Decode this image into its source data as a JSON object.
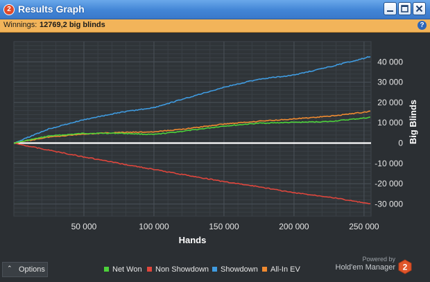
{
  "window": {
    "title": "Results Graph",
    "app_icon_text": "2",
    "buttons": [
      "minimize",
      "maximize",
      "close"
    ]
  },
  "winnings": {
    "label": "Winnings:",
    "value": "12769,2 big blinds",
    "help_icon": "question-icon"
  },
  "footer": {
    "options_label": "Options",
    "options_icon": "chevron-up-icon",
    "powered_by": "Powered by",
    "brand": "Hold'em Manager",
    "brand_logo_text": "2"
  },
  "colors": {
    "background": "#2b2f33",
    "net_won": "#4cd13a",
    "non_showdown": "#e0463c",
    "showdown": "#3f9be0",
    "all_in_ev": "#f08a30",
    "title_bar": "#4285d6",
    "winnings_bar": "#f2b45a"
  },
  "chart_data": {
    "type": "line",
    "title": "",
    "xlabel": "Hands",
    "ylabel": "Big Blinds",
    "xlim": [
      0,
      255000
    ],
    "ylim": [
      -36000,
      50000
    ],
    "x_ticks": [
      50000,
      100000,
      150000,
      200000,
      250000
    ],
    "x_tick_labels": [
      "50 000",
      "100 000",
      "150 000",
      "200 000",
      "250 000"
    ],
    "y_ticks": [
      40000,
      30000,
      20000,
      10000,
      0,
      -10000,
      -20000,
      -30000
    ],
    "y_tick_labels": [
      "40 000",
      "30 000",
      "20 000",
      "10 000",
      "0",
      "-10 000",
      "-20 000",
      "-30 000"
    ],
    "y_axis_position": "right",
    "grid": true,
    "legend": "bottom",
    "x": [
      0,
      25000,
      50000,
      75000,
      100000,
      125000,
      150000,
      175000,
      200000,
      225000,
      250000,
      255000
    ],
    "series": [
      {
        "name": "Net Won",
        "color": "#4cd13a",
        "values": [
          0,
          3500,
          4800,
          4900,
          4200,
          6200,
          8400,
          9800,
          10200,
          10600,
          12300,
          12769
        ]
      },
      {
        "name": "Non Showdown",
        "color": "#e0463c",
        "values": [
          0,
          -3500,
          -6800,
          -10000,
          -13000,
          -16000,
          -19000,
          -21500,
          -24500,
          -26500,
          -29500,
          -30000
        ]
      },
      {
        "name": "Showdown",
        "color": "#3f9be0",
        "values": [
          0,
          7000,
          11500,
          15000,
          17500,
          22500,
          27500,
          31500,
          33500,
          37500,
          41800,
          42800
        ]
      },
      {
        "name": "All-In EV",
        "color": "#f08a30",
        "values": [
          0,
          3000,
          4500,
          5200,
          5500,
          7200,
          9400,
          10800,
          11900,
          13200,
          15200,
          15800
        ]
      }
    ]
  }
}
